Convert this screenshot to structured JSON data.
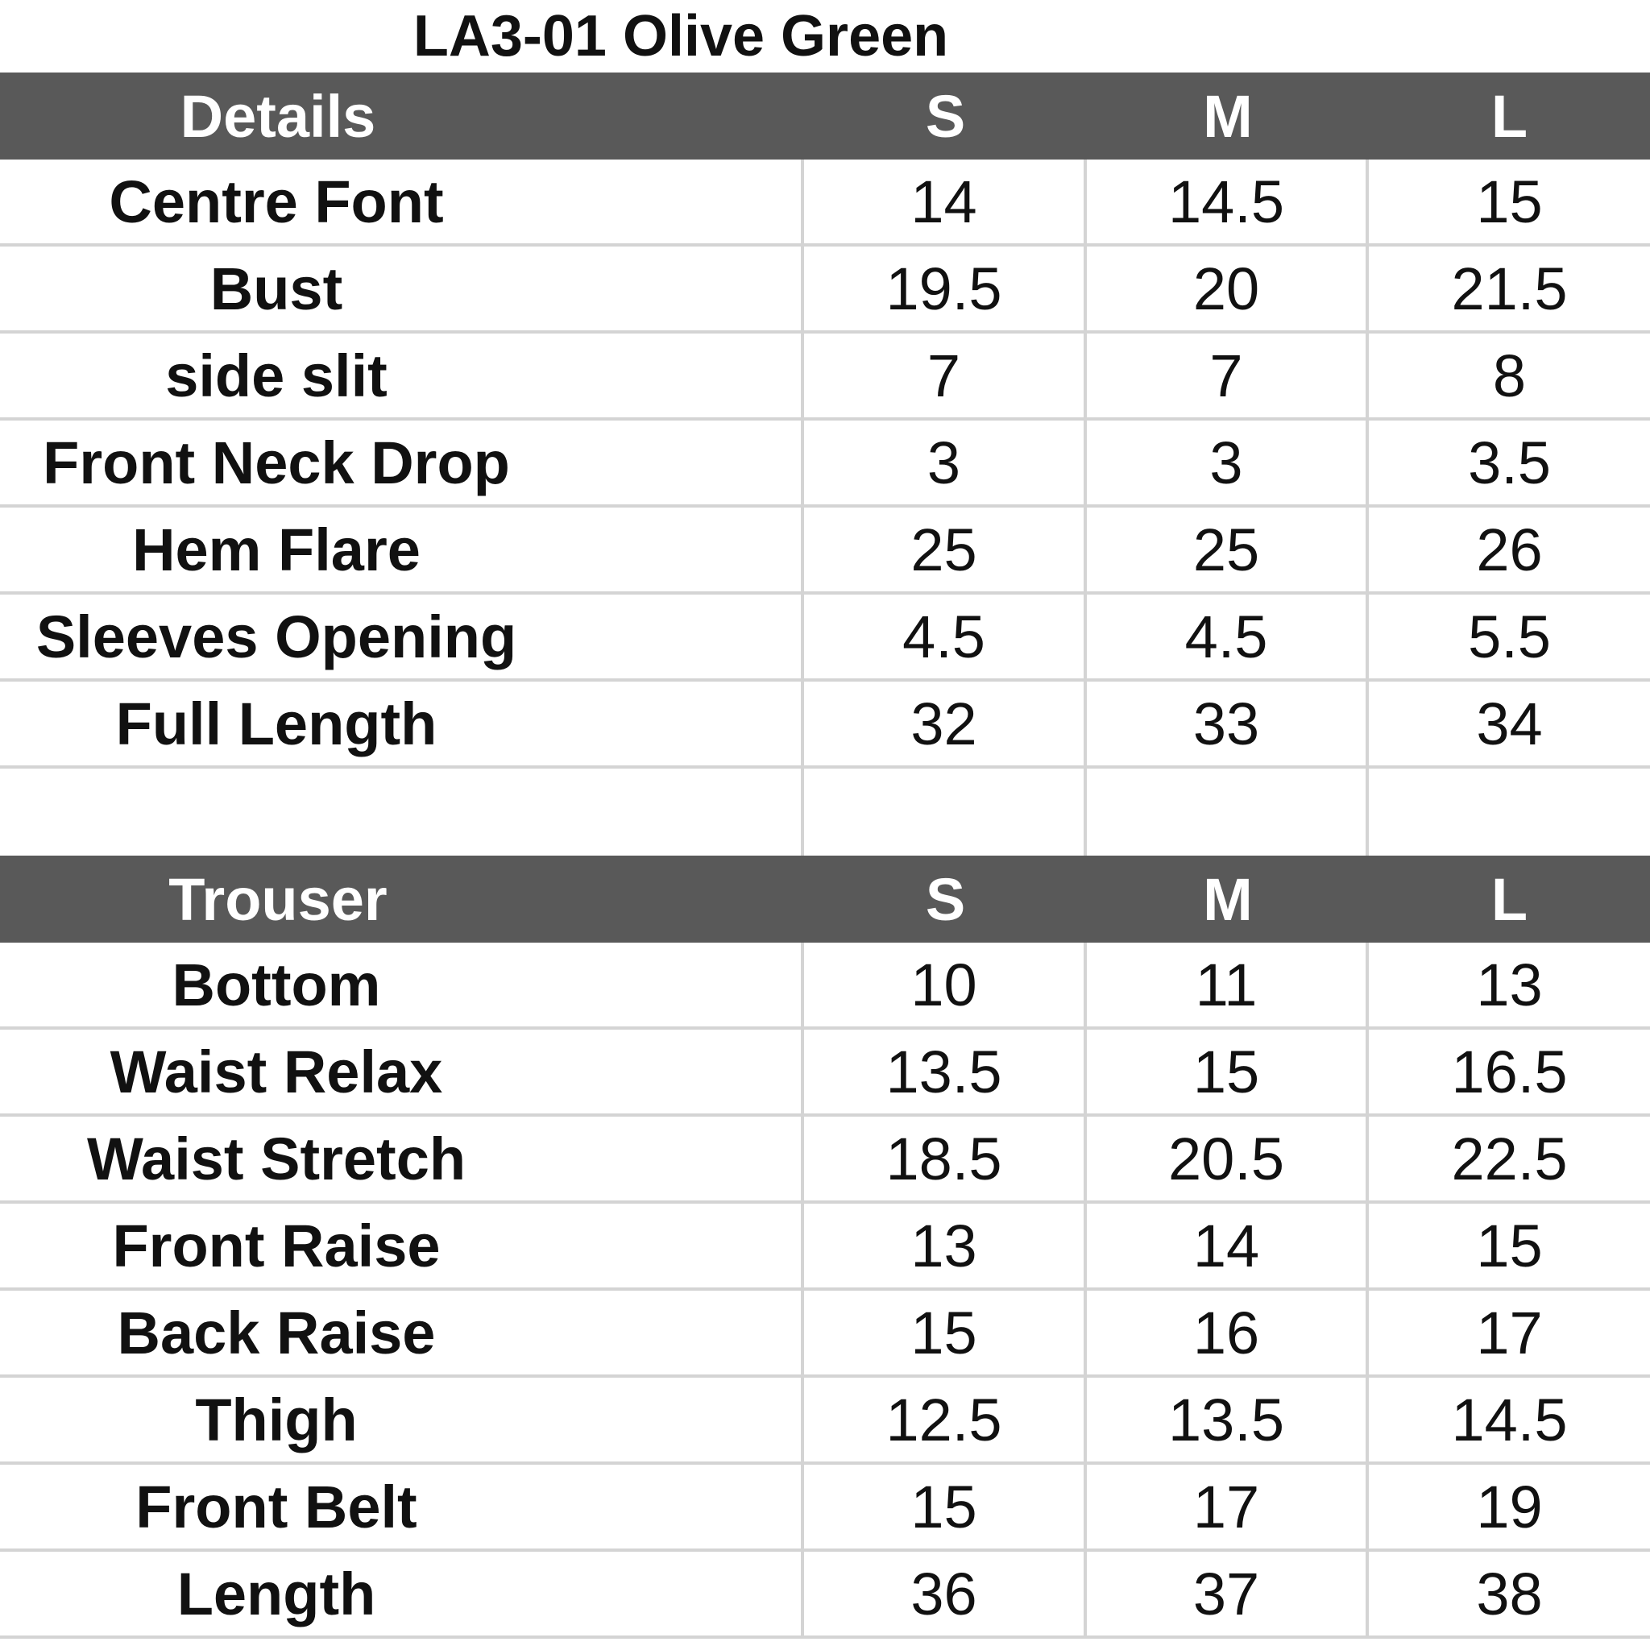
{
  "title": "LA3-01 Olive Green",
  "sizes": [
    "S",
    "M",
    "L"
  ],
  "details": {
    "header": "Details",
    "rows": [
      {
        "label": "Centre Font",
        "values": [
          "14",
          "14.5",
          "15"
        ]
      },
      {
        "label": "Bust",
        "values": [
          "19.5",
          "20",
          "21.5"
        ]
      },
      {
        "label": "side slit",
        "values": [
          "7",
          "7",
          "8"
        ]
      },
      {
        "label": "Front Neck Drop",
        "values": [
          "3",
          "3",
          "3.5"
        ]
      },
      {
        "label": "Hem Flare",
        "values": [
          "25",
          "25",
          "26"
        ]
      },
      {
        "label": "Sleeves Opening",
        "values": [
          "4.5",
          "4.5",
          "5.5"
        ]
      },
      {
        "label": "Full Length",
        "values": [
          "32",
          "33",
          "34"
        ]
      }
    ]
  },
  "trouser": {
    "header": "Trouser",
    "rows": [
      {
        "label": "Bottom",
        "values": [
          "10",
          "11",
          "13"
        ]
      },
      {
        "label": "Waist Relax",
        "values": [
          "13.5",
          "15",
          "16.5"
        ]
      },
      {
        "label": "Waist Stretch",
        "values": [
          "18.5",
          "20.5",
          "22.5"
        ]
      },
      {
        "label": "Front Raise",
        "values": [
          "13",
          "14",
          "15"
        ]
      },
      {
        "label": "Back Raise",
        "values": [
          "15",
          "16",
          "17"
        ]
      },
      {
        "label": "Thigh",
        "values": [
          "12.5",
          "13.5",
          "14.5"
        ]
      },
      {
        "label": "Front Belt",
        "values": [
          "15",
          "17",
          "19"
        ]
      },
      {
        "label": "Length",
        "values": [
          "36",
          "37",
          "38"
        ]
      }
    ]
  },
  "colors": {
    "header_bg": "#595959",
    "header_text": "#ffffff",
    "grid_line": "#d4d4d4"
  }
}
